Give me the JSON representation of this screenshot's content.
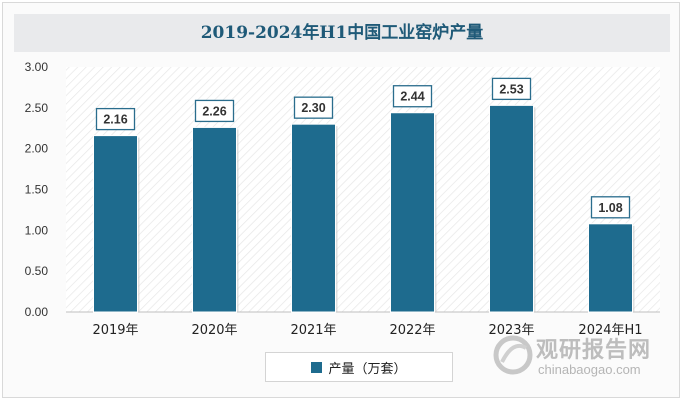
{
  "chart_data": {
    "type": "bar",
    "title": "2019-2024年H1中国工业窑炉产量",
    "categories": [
      "2019年",
      "2020年",
      "2021年",
      "2022年",
      "2023年",
      "2024年H1"
    ],
    "series": [
      {
        "name": "产量（万套）",
        "values": [
          2.16,
          2.26,
          2.3,
          2.44,
          2.53,
          1.08
        ]
      }
    ],
    "data_labels": [
      "2.16",
      "2.26",
      "2.30",
      "2.44",
      "2.53",
      "1.08"
    ],
    "y_ticks": [
      "0.00",
      "0.50",
      "1.00",
      "1.50",
      "2.00",
      "2.50",
      "3.00"
    ],
    "ylim": [
      0,
      3
    ],
    "xlabel": "",
    "ylabel": "",
    "grid": false,
    "legend_position": "bottom",
    "bar_color": "#1e6b8e",
    "title_color": "#1f5a78"
  },
  "watermark": {
    "logo_text": "观研报告网",
    "url": "chinabaogao.com"
  }
}
